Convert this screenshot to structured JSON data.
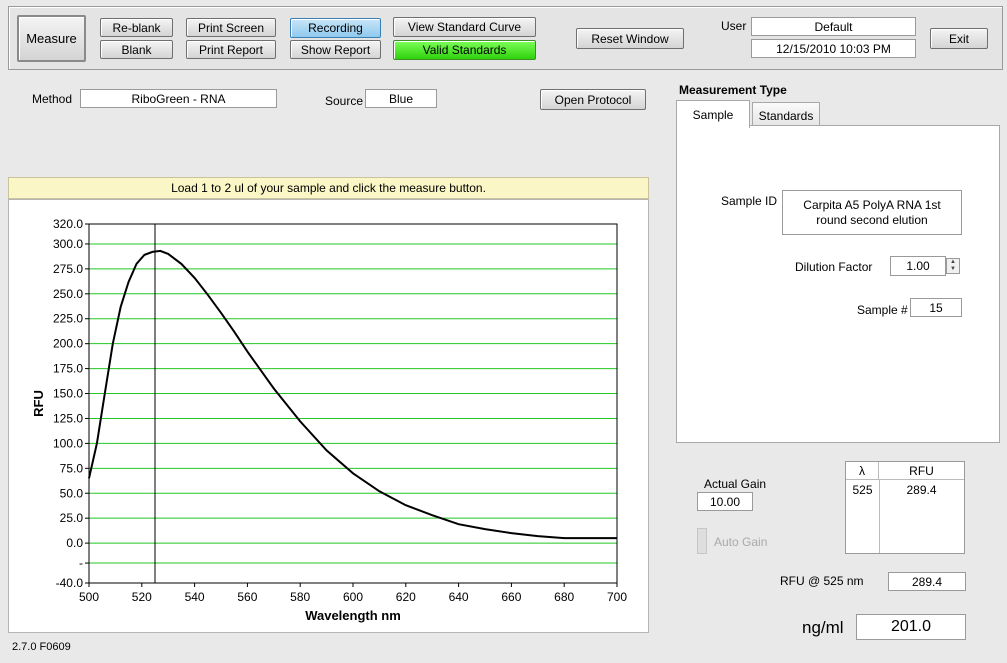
{
  "toolbar": {
    "measure": "Measure",
    "reblank": "Re-blank",
    "blank": "Blank",
    "print_screen": "Print Screen",
    "print_report": "Print Report",
    "recording": "Recording",
    "show_report": "Show Report",
    "view_standard_curve": "View Standard Curve",
    "valid_standards": "Valid Standards",
    "reset_window": "Reset Window",
    "user_label": "User",
    "user_value": "Default",
    "datetime": "12/15/2010  10:03 PM",
    "exit": "Exit"
  },
  "method": {
    "label": "Method",
    "value": "RiboGreen - RNA"
  },
  "source": {
    "label": "Source",
    "value": "Blue"
  },
  "open_protocol": "Open Protocol",
  "banner": "Load 1 to 2 ul of your sample and click the measure button.",
  "measurement": {
    "title": "Measurement Type",
    "tabs": [
      "Sample",
      "Standards"
    ],
    "sample_id_label": "Sample ID",
    "sample_id_value": "Carpita A5 PolyA RNA 1st round second elution",
    "dilution_label": "Dilution Factor",
    "dilution_value": "1.00",
    "sample_num_label": "Sample #",
    "sample_num_value": "15"
  },
  "gain": {
    "actual_label": "Actual Gain",
    "actual_value": "10.00",
    "auto_label": "Auto Gain",
    "table_headers": [
      "λ",
      "RFU"
    ],
    "table_rows": [
      [
        "525",
        "289.4"
      ]
    ]
  },
  "rfu_at": {
    "label": "RFU @ 525 nm",
    "value": "289.4"
  },
  "conc": {
    "label": "ng/ml",
    "value": "201.0"
  },
  "version": "2.7.0 F0609",
  "chart_data": {
    "type": "line",
    "xlabel": "Wavelength  nm",
    "ylabel": "RFU",
    "xlim": [
      500,
      700
    ],
    "ylim": [
      -40,
      320
    ],
    "x_ticks": [
      "500",
      "520",
      "540",
      "560",
      "580",
      "600",
      "620",
      "640",
      "660",
      "680",
      "700"
    ],
    "y_ticks": [
      "320.0",
      "300.0",
      "275.0",
      "250.0",
      "225.0",
      "200.0",
      "175.0",
      "150.0",
      "125.0",
      "100.0",
      "75.0",
      "50.0",
      "25.0",
      "0.0",
      "-",
      "-40.0"
    ],
    "marker_x": 525,
    "series": [
      {
        "x": [
          500,
          503,
          506,
          509,
          512,
          515,
          518,
          521,
          524,
          527,
          530,
          535,
          540,
          545,
          550,
          555,
          560,
          570,
          580,
          590,
          600,
          610,
          620,
          630,
          640,
          650,
          660,
          670,
          680,
          690,
          700
        ],
        "y": [
          65,
          100,
          150,
          200,
          237,
          262,
          280,
          289,
          292,
          293,
          290,
          280,
          266,
          249,
          231,
          212,
          192,
          155,
          122,
          93,
          70,
          52,
          38,
          28,
          19,
          14,
          10,
          7,
          5,
          5,
          5
        ]
      }
    ]
  }
}
